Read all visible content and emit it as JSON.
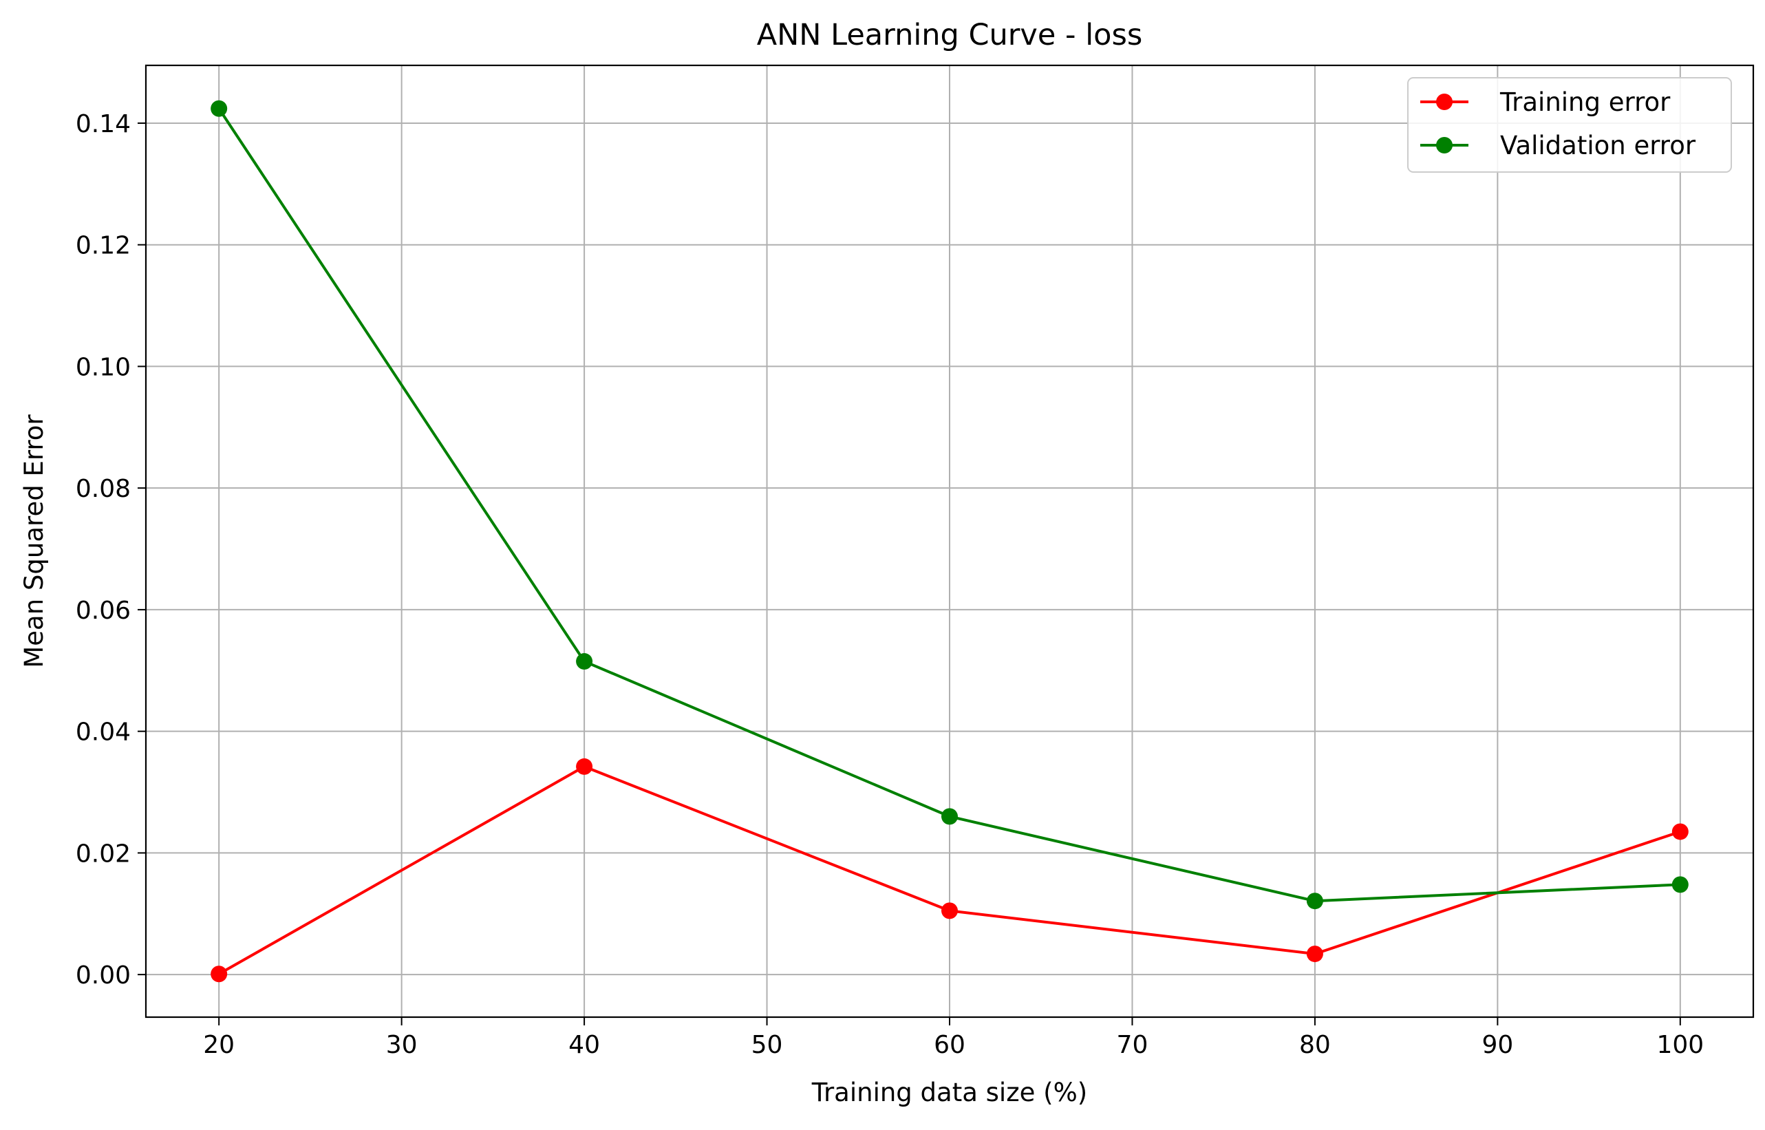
{
  "chart_data": {
    "type": "line",
    "title": "ANN Learning Curve - loss",
    "xlabel": "Training data size (%)",
    "ylabel": "Mean Squared Error",
    "x": [
      20,
      40,
      60,
      80,
      100
    ],
    "xlim": [
      16,
      104
    ],
    "ylim": [
      -0.007,
      0.1495
    ],
    "xticks": [
      20,
      30,
      40,
      50,
      60,
      70,
      80,
      90,
      100
    ],
    "xtick_labels": [
      "20",
      "30",
      "40",
      "50",
      "60",
      "70",
      "80",
      "90",
      "100"
    ],
    "yticks": [
      0.0,
      0.02,
      0.04,
      0.06,
      0.08,
      0.1,
      0.12,
      0.14
    ],
    "ytick_labels": [
      "0.00",
      "0.02",
      "0.04",
      "0.06",
      "0.08",
      "0.10",
      "0.12",
      "0.14"
    ],
    "grid": true,
    "legend_position": "top-right",
    "series": [
      {
        "name": "Training error",
        "color": "#ff0000",
        "marker": "circle",
        "values": [
          0.0001,
          0.0342,
          0.0105,
          0.0034,
          0.0235
        ]
      },
      {
        "name": "Validation error",
        "color": "#008000",
        "marker": "circle",
        "values": [
          0.1424,
          0.0515,
          0.026,
          0.0121,
          0.0148
        ]
      }
    ]
  }
}
